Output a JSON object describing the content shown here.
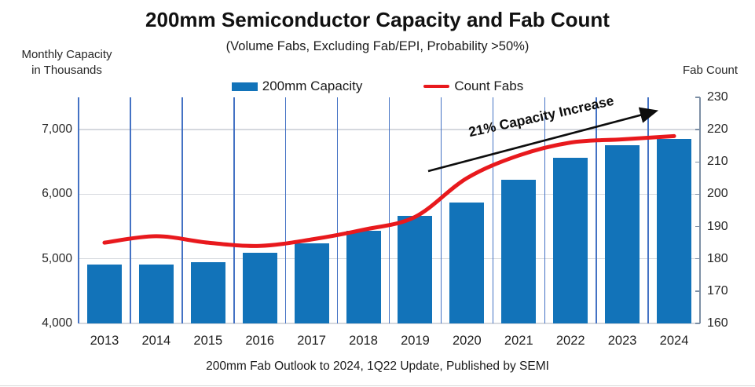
{
  "title": "200mm Semiconductor Capacity and Fab Count",
  "subtitle": "(Volume Fabs, Excluding Fab/EPI, Probability >50%)",
  "left_axis_title": "Monthly Capacity in Thousands",
  "left_axis_title_line1": "Monthly Capacity",
  "left_axis_title_line2": "in Thousands",
  "right_axis_title": "Fab Count",
  "legend": {
    "capacity_label": "200mm Capacity",
    "fabs_label": "Count Fabs"
  },
  "annotation": {
    "text": "21% Capacity Increase"
  },
  "footer": "200mm Fab Outlook to 2024, 1Q22 Update, Published by SEMI",
  "colors": {
    "bar_blue": "#1273B9",
    "line_red": "#E8191D",
    "vertical_gridline": "#4472C4",
    "horizontal_gridline": "#D5D8DE",
    "right_axis": "#7D8FA5",
    "annotation_black": "#0D0D0D"
  },
  "chart_data": {
    "type": "combo (bar + line, dual axis)",
    "categories": [
      "2013",
      "2014",
      "2015",
      "2016",
      "2017",
      "2018",
      "2019",
      "2020",
      "2021",
      "2022",
      "2023",
      "2024"
    ],
    "series": [
      {
        "name": "200mm Capacity",
        "type": "bar",
        "axis": "left",
        "color": "#1273B9",
        "values": [
          4910,
          4910,
          4950,
          5090,
          5240,
          5440,
          5660,
          5870,
          6220,
          6560,
          6760,
          6860
        ]
      },
      {
        "name": "Count Fabs",
        "type": "line",
        "axis": "right",
        "color": "#E8191D",
        "values": [
          185,
          187,
          185,
          184,
          186,
          189,
          193,
          205,
          212,
          216,
          217,
          218
        ]
      }
    ],
    "left_axis": {
      "label": "Monthly Capacity in Thousands",
      "min": 4000,
      "max": 7500,
      "tick_values": [
        4000,
        5000,
        6000,
        7000
      ],
      "tick_labels": [
        "4,000",
        "5,000",
        "6,000",
        "7,000"
      ]
    },
    "right_axis": {
      "label": "Fab Count",
      "min": 160,
      "max": 230,
      "tick_values": [
        160,
        170,
        180,
        190,
        200,
        210,
        220,
        230
      ],
      "tick_labels": [
        "160",
        "170",
        "180",
        "190",
        "200",
        "210",
        "220",
        "230"
      ]
    },
    "grid": "vertical blue category gridlines + light horizontal gridlines",
    "legend_position": "top-center",
    "annotation": "21% Capacity Increase (arrow from 2019 to 2024)"
  }
}
